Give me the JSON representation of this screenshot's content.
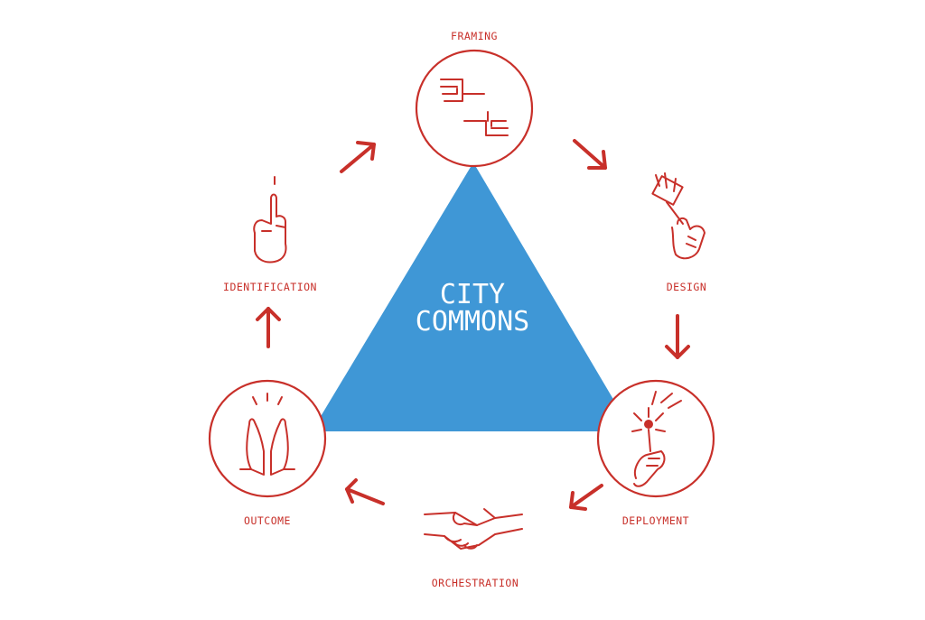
{
  "center": {
    "line1": "CITY",
    "line2": "COMMONS"
  },
  "stages": [
    {
      "id": "framing",
      "label": "FRAMING",
      "icon": "framing-hands-icon"
    },
    {
      "id": "design",
      "label": "DESIGN",
      "icon": "paintbrush-hand-icon"
    },
    {
      "id": "deployment",
      "label": "DEPLOYMENT",
      "icon": "sparkler-hand-icon"
    },
    {
      "id": "orchestration",
      "label": "ORCHESTRATION",
      "icon": "handshake-icon"
    },
    {
      "id": "outcome",
      "label": "OUTCOME",
      "icon": "high-five-icon"
    },
    {
      "id": "identification",
      "label": "IDENTIFICATION",
      "icon": "pointing-finger-icon"
    }
  ],
  "colors": {
    "accent": "#c8302a",
    "triangle": "#3f97d6",
    "background": "#ffffff"
  }
}
